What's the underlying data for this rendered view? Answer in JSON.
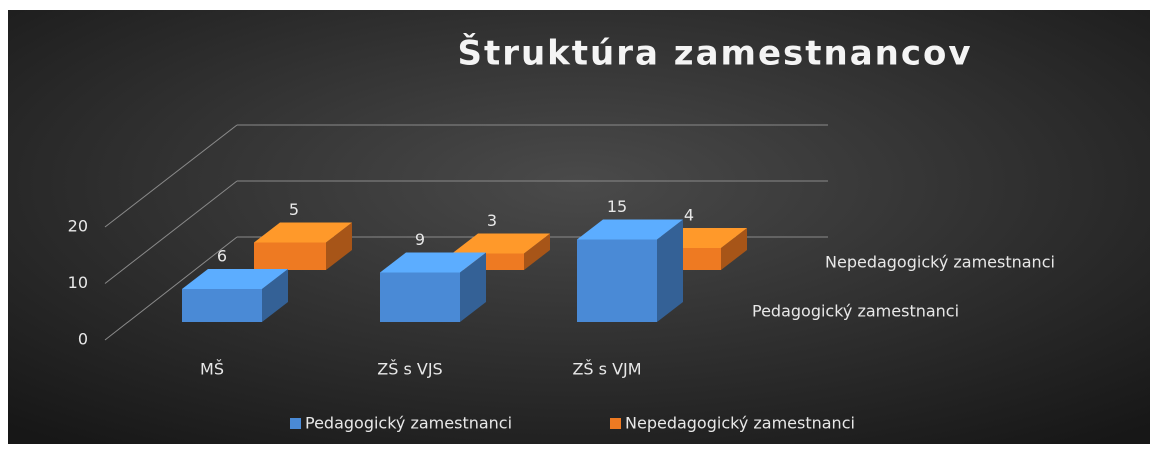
{
  "chart_data": {
    "type": "bar3d",
    "title": "Štruktúra zamestnancov",
    "categories": [
      "MŠ",
      "ZŠ s VJS",
      "ZŠ s VJM"
    ],
    "series": [
      {
        "name": "Pedagogický zamestnanci",
        "color": "#4a8ad6",
        "values": [
          6,
          9,
          15
        ]
      },
      {
        "name": "Nepedagogický zamestnanci",
        "color": "#ee7a22",
        "values": [
          5,
          3,
          4
        ]
      }
    ],
    "ylim": [
      0,
      20
    ],
    "yticks": [
      0,
      10,
      20
    ],
    "grid": true,
    "legend": "bottom"
  }
}
